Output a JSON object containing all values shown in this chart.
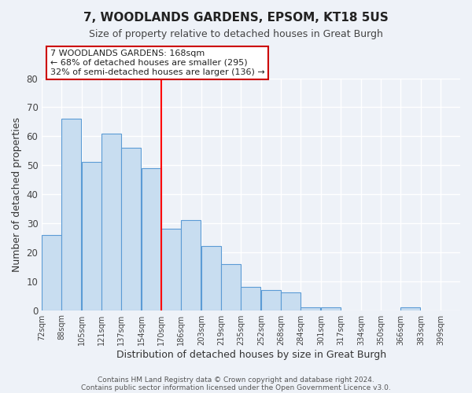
{
  "title": "7, WOODLANDS GARDENS, EPSOM, KT18 5US",
  "subtitle": "Size of property relative to detached houses in Great Burgh",
  "xlabel": "Distribution of detached houses by size in Great Burgh",
  "ylabel": "Number of detached properties",
  "bar_left_edges": [
    72,
    88,
    105,
    121,
    137,
    154,
    170,
    186,
    203,
    219,
    235,
    252,
    268,
    284,
    301,
    317,
    334,
    350,
    366,
    383
  ],
  "bar_heights": [
    26,
    66,
    51,
    61,
    56,
    49,
    28,
    31,
    22,
    16,
    8,
    7,
    6,
    1,
    1,
    0,
    0,
    0,
    1,
    0
  ],
  "bin_width": 16,
  "tick_labels": [
    "72sqm",
    "88sqm",
    "105sqm",
    "121sqm",
    "137sqm",
    "154sqm",
    "170sqm",
    "186sqm",
    "203sqm",
    "219sqm",
    "235sqm",
    "252sqm",
    "268sqm",
    "284sqm",
    "301sqm",
    "317sqm",
    "334sqm",
    "350sqm",
    "366sqm",
    "383sqm",
    "399sqm"
  ],
  "tick_positions": [
    72,
    88,
    105,
    121,
    137,
    154,
    170,
    186,
    203,
    219,
    235,
    252,
    268,
    284,
    301,
    317,
    334,
    350,
    366,
    383,
    399
  ],
  "bar_color": "#c8ddf0",
  "bar_edge_color": "#5b9bd5",
  "vline_x": 170,
  "vline_color": "red",
  "ylim": [
    0,
    80
  ],
  "yticks": [
    0,
    10,
    20,
    30,
    40,
    50,
    60,
    70,
    80
  ],
  "annotation_title": "7 WOODLANDS GARDENS: 168sqm",
  "annotation_line1": "← 68% of detached houses are smaller (295)",
  "annotation_line2": "32% of semi-detached houses are larger (136) →",
  "footer_line1": "Contains HM Land Registry data © Crown copyright and database right 2024.",
  "footer_line2": "Contains public sector information licensed under the Open Government Licence v3.0.",
  "background_color": "#eef2f8",
  "grid_color": "#ffffff"
}
